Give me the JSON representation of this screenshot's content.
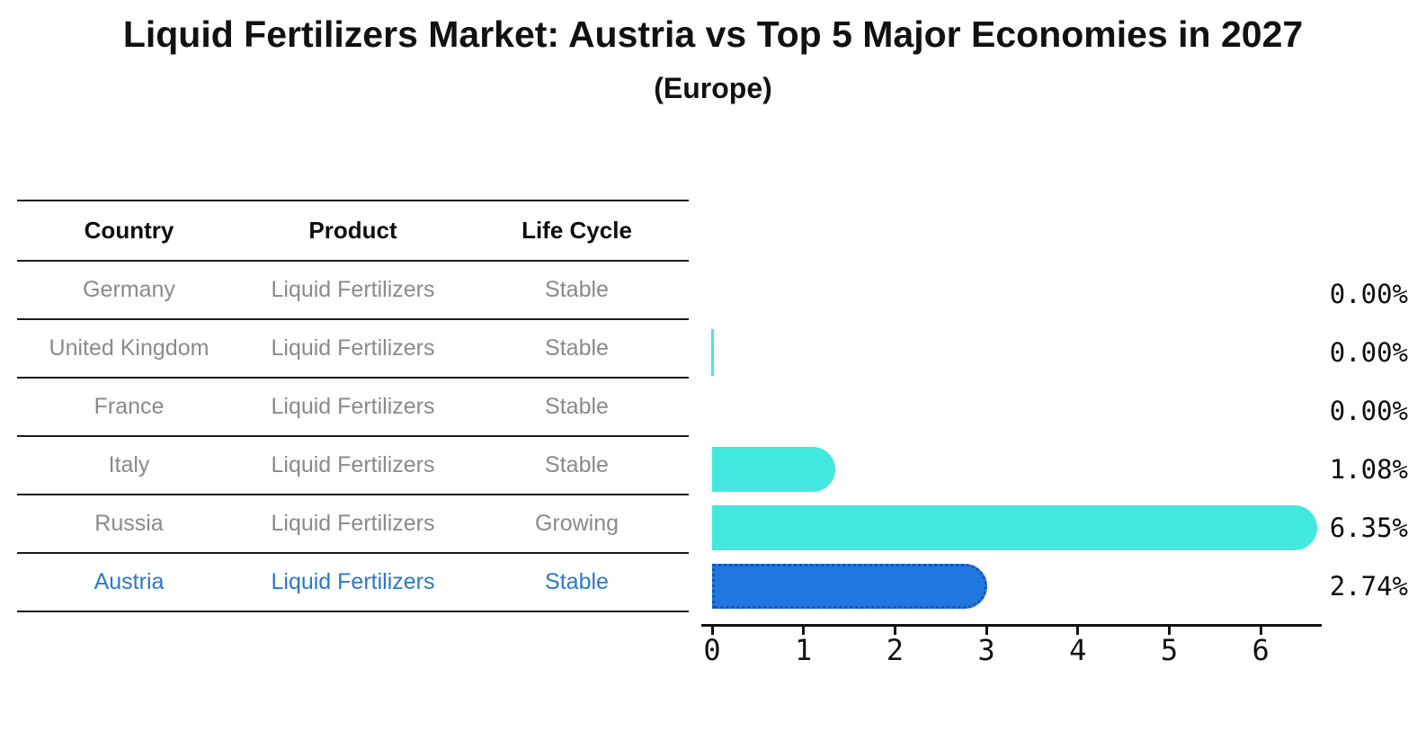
{
  "header": {
    "title": "Liquid Fertilizers Market: Austria vs Top 5 Major Economies in 2027",
    "subtitle": "(Europe)"
  },
  "table": {
    "columns": [
      "Country",
      "Product",
      "Life Cycle"
    ],
    "rows": [
      {
        "country": "Germany",
        "product": "Liquid Fertilizers",
        "life_cycle": "Stable",
        "highlight": false
      },
      {
        "country": "United Kingdom",
        "product": "Liquid Fertilizers",
        "life_cycle": "Stable",
        "highlight": false
      },
      {
        "country": "France",
        "product": "Liquid Fertilizers",
        "life_cycle": "Stable",
        "highlight": false
      },
      {
        "country": "Italy",
        "product": "Liquid Fertilizers",
        "life_cycle": "Stable",
        "highlight": false
      },
      {
        "country": "Russia",
        "product": "Liquid Fertilizers",
        "life_cycle": "Growing",
        "highlight": false
      },
      {
        "country": "Austria",
        "product": "Liquid Fertilizers",
        "life_cycle": "Stable",
        "highlight": true
      }
    ]
  },
  "chart_data": {
    "type": "bar",
    "orientation": "horizontal",
    "title": "Liquid Fertilizers Market: Austria vs Top 5 Major Economies in 2027",
    "subtitle": "(Europe)",
    "categories": [
      "Germany",
      "United Kingdom",
      "France",
      "Italy",
      "Russia",
      "Austria"
    ],
    "values": [
      0.0,
      0.0,
      0.0,
      1.08,
      6.35,
      2.74
    ],
    "value_labels": [
      "0.00%",
      "0.00%",
      "0.00%",
      "1.08%",
      "6.35%",
      "2.74%"
    ],
    "highlight_category": "Austria",
    "xlim": [
      0,
      6.77
    ],
    "x_ticks": [
      "0",
      "1",
      "2",
      "3",
      "4",
      "5",
      "6"
    ],
    "grid": false,
    "legend": false,
    "zero_bar_tick_visible": [
      "United Kingdom"
    ]
  },
  "colors": {
    "bar_teal": "#43E8DE",
    "bar_highlight_blue": "#2176E0",
    "bar_highlight_border": "#1456B4",
    "table_text_gray": "#8a8a8a",
    "highlight_text_blue": "#2878CE",
    "text_black": "#111111",
    "line_black": "#1a1a1a"
  }
}
